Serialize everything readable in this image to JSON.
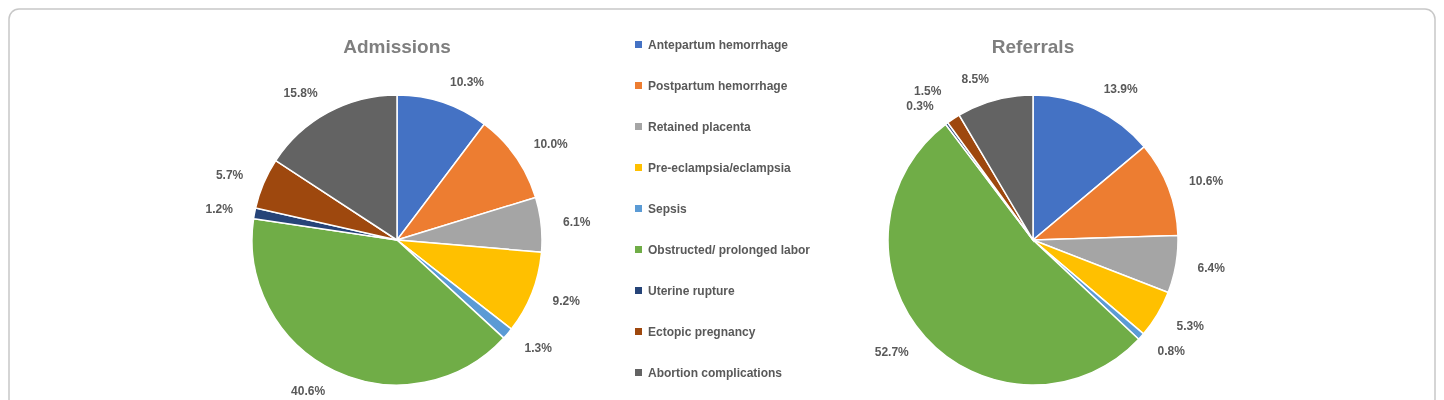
{
  "chart_data": [
    {
      "type": "pie",
      "title": "Admissions",
      "legend": "right",
      "categories": [
        "Antepartum hemorrhage",
        "Postpartum hemorrhage",
        "Retained placenta",
        "Pre-eclampsia/eclampsia",
        "Sepsis",
        "Obstructed/ prolonged labor",
        "Uterine rupture",
        "Ectopic pregnancy",
        "Abortion complications"
      ],
      "values": [
        10.3,
        10.0,
        6.1,
        9.2,
        1.3,
        40.6,
        1.2,
        5.7,
        15.8
      ],
      "value_labels": [
        "10.3%",
        "10.0%",
        "6.1%",
        "9.2%",
        "1.3%",
        "40.6%",
        "1.2%",
        "5.7%",
        "15.8%"
      ],
      "colors": [
        "#4472c4",
        "#ed7d31",
        "#a5a5a5",
        "#ffc000",
        "#5b9bd5",
        "#70ad47",
        "#264478",
        "#9e480e",
        "#636363"
      ]
    },
    {
      "type": "pie",
      "title": "Referrals",
      "categories": [
        null,
        null,
        null,
        null,
        null,
        null,
        null,
        null,
        null
      ],
      "values": [
        13.9,
        10.6,
        6.4,
        5.3,
        0.8,
        52.7,
        0.3,
        1.5,
        8.5
      ],
      "value_labels": [
        "13.9%",
        "10.6%",
        "6.4%",
        "5.3%",
        "0.8%",
        "52.7%",
        "0.3%",
        "1.5%",
        "8.5%"
      ],
      "colors": [
        "#4472c4",
        "#ed7d31",
        "#a5a5a5",
        "#ffc000",
        "#5b9bd5",
        "#70ad47",
        "#264478",
        "#9e480e",
        "#636363"
      ]
    }
  ]
}
